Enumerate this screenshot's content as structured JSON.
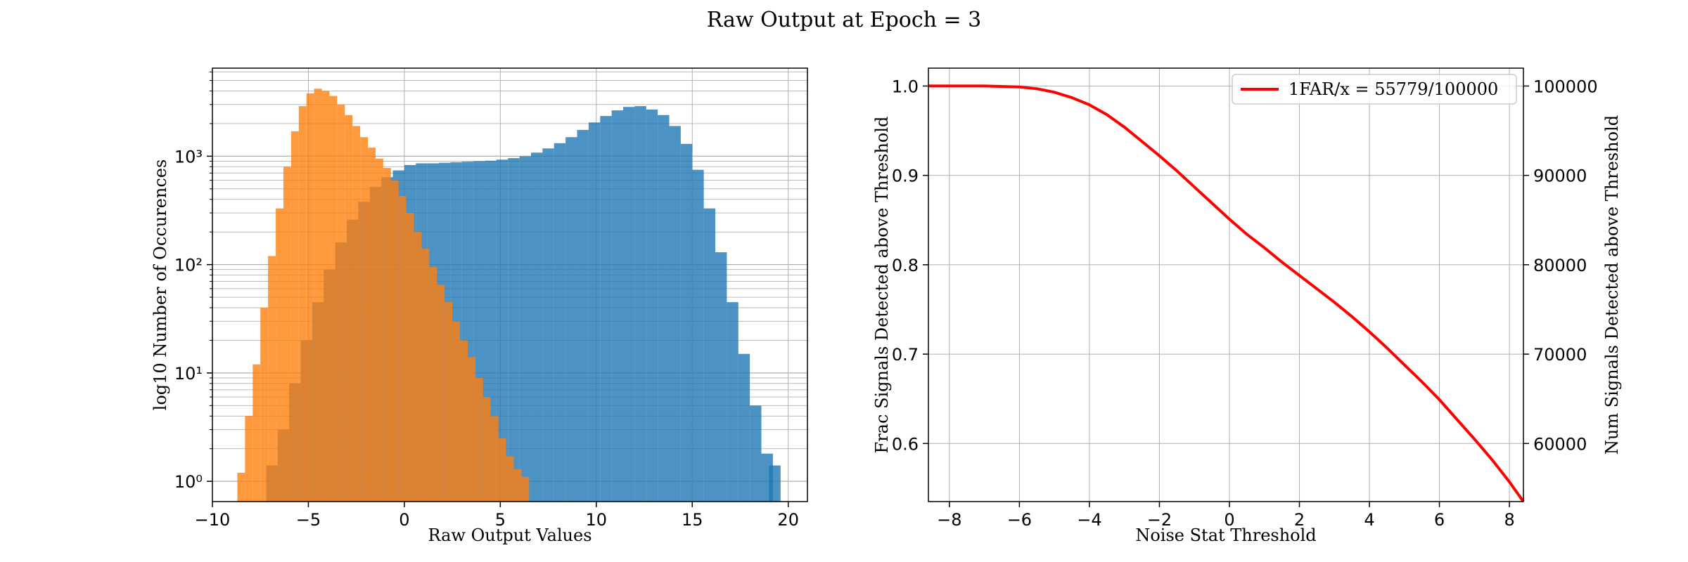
{
  "figure": {
    "title": "Raw Output at Epoch = 3"
  },
  "colors": {
    "signal": "#1f77b4",
    "noise": "#ff7f0e",
    "curve": "#ff0000",
    "grid": "#b0b0b0"
  },
  "chart_data": [
    {
      "type": "bar",
      "subtype": "histogram",
      "title": "",
      "xlabel": "Raw Output Values",
      "ylabel": "log10 Number of Occurences",
      "xlim": [
        -10,
        21
      ],
      "ylim": [
        0.65,
        6500
      ],
      "yscale": "log",
      "xticks": [
        -10,
        -5,
        0,
        5,
        10,
        15,
        20
      ],
      "xtick_labels": [
        "−10",
        "−5",
        "0",
        "5",
        "10",
        "15",
        "20"
      ],
      "yticks": [
        1,
        10,
        100,
        1000
      ],
      "ytick_labels": [
        "10⁰",
        "10¹",
        "10²",
        "10³"
      ],
      "grid": true,
      "series": [
        {
          "key": "signal",
          "alpha": 0.8,
          "bins": [
            [
              -7.2,
              1.4
            ],
            [
              -6.6,
              3
            ],
            [
              -6.0,
              8
            ],
            [
              -5.4,
              20
            ],
            [
              -4.8,
              45
            ],
            [
              -4.2,
              90
            ],
            [
              -3.6,
              160
            ],
            [
              -3.0,
              260
            ],
            [
              -2.4,
              380
            ],
            [
              -1.8,
              520
            ],
            [
              -1.2,
              640
            ],
            [
              -0.6,
              740
            ],
            [
              0.0,
              830
            ],
            [
              0.6,
              860
            ],
            [
              1.2,
              860
            ],
            [
              1.8,
              870
            ],
            [
              2.4,
              880
            ],
            [
              3.0,
              890
            ],
            [
              3.6,
              900
            ],
            [
              4.2,
              910
            ],
            [
              4.8,
              930
            ],
            [
              5.4,
              960
            ],
            [
              6.0,
              1000
            ],
            [
              6.6,
              1080
            ],
            [
              7.2,
              1180
            ],
            [
              7.8,
              1320
            ],
            [
              8.4,
              1500
            ],
            [
              9.0,
              1750
            ],
            [
              9.6,
              2050
            ],
            [
              10.2,
              2350
            ],
            [
              10.8,
              2650
            ],
            [
              11.4,
              2850
            ],
            [
              12.0,
              2900
            ],
            [
              12.6,
              2700
            ],
            [
              13.2,
              2400
            ],
            [
              13.8,
              1900
            ],
            [
              14.4,
              1300
            ],
            [
              15.0,
              750
            ],
            [
              15.6,
              330
            ],
            [
              16.2,
              130
            ],
            [
              16.8,
              45
            ],
            [
              17.4,
              15
            ],
            [
              18.0,
              5
            ],
            [
              18.6,
              1.8
            ],
            [
              19.0,
              1.4
            ]
          ],
          "bin_width": 0.6
        },
        {
          "key": "noise",
          "alpha": 0.8,
          "bins": [
            [
              -8.7,
              1.2
            ],
            [
              -8.3,
              4
            ],
            [
              -7.9,
              12
            ],
            [
              -7.5,
              40
            ],
            [
              -7.1,
              120
            ],
            [
              -6.7,
              330
            ],
            [
              -6.3,
              800
            ],
            [
              -5.9,
              1700
            ],
            [
              -5.5,
              2900
            ],
            [
              -5.1,
              3800
            ],
            [
              -4.7,
              4200
            ],
            [
              -4.3,
              4000
            ],
            [
              -3.9,
              3600
            ],
            [
              -3.5,
              3000
            ],
            [
              -3.1,
              2400
            ],
            [
              -2.7,
              1900
            ],
            [
              -2.3,
              1500
            ],
            [
              -1.9,
              1200
            ],
            [
              -1.5,
              950
            ],
            [
              -1.1,
              780
            ],
            [
              -0.7,
              600
            ],
            [
              -0.3,
              430
            ],
            [
              0.1,
              300
            ],
            [
              0.5,
              200
            ],
            [
              0.9,
              140
            ],
            [
              1.3,
              95
            ],
            [
              1.7,
              65
            ],
            [
              2.1,
              45
            ],
            [
              2.5,
              30
            ],
            [
              2.9,
              20
            ],
            [
              3.3,
              14
            ],
            [
              3.7,
              9
            ],
            [
              4.1,
              6
            ],
            [
              4.5,
              4
            ],
            [
              4.9,
              2.5
            ],
            [
              5.3,
              1.7
            ],
            [
              5.7,
              1.3
            ],
            [
              6.1,
              1.1
            ]
          ],
          "bin_width": 0.4
        }
      ]
    },
    {
      "type": "line",
      "title": "",
      "xlabel": "Noise Stat Threshold",
      "ylabel": "Frac Signals Detected above Threshold",
      "ylabel_right": "Num Signals Detected above Threshold",
      "xlim": [
        -8.6,
        8.4
      ],
      "ylim": [
        0.535,
        1.02
      ],
      "ylim_right": [
        53500,
        102000
      ],
      "xticks": [
        -8,
        -6,
        -4,
        -2,
        0,
        2,
        4,
        6,
        8
      ],
      "xtick_labels": [
        "−8",
        "−6",
        "−4",
        "−2",
        "0",
        "2",
        "4",
        "6",
        "8"
      ],
      "yticks": [
        0.6,
        0.7,
        0.8,
        0.9,
        1.0
      ],
      "ytick_labels": [
        "0.6",
        "0.7",
        "0.8",
        "0.9",
        "1.0"
      ],
      "yticks_right": [
        60000,
        70000,
        80000,
        90000,
        100000
      ],
      "ytick_labels_right": [
        "60000",
        "70000",
        "80000",
        "90000",
        "100000"
      ],
      "grid": true,
      "legend_placement": "upper-right",
      "series": [
        {
          "name": "1FAR/x = 55779/100000",
          "key": "curve",
          "x": [
            -8.6,
            -7,
            -6,
            -5.5,
            -5,
            -4.5,
            -4,
            -3.5,
            -3,
            -2.5,
            -2,
            -1.5,
            -1,
            -0.5,
            0,
            0.5,
            1,
            1.5,
            2,
            2.5,
            3,
            3.5,
            4,
            4.5,
            5,
            5.5,
            6,
            6.5,
            7,
            7.5,
            8,
            8.4
          ],
          "y": [
            1.0,
            1.0,
            0.999,
            0.997,
            0.993,
            0.987,
            0.979,
            0.968,
            0.954,
            0.938,
            0.922,
            0.905,
            0.887,
            0.869,
            0.851,
            0.834,
            0.819,
            0.803,
            0.788,
            0.773,
            0.758,
            0.742,
            0.725,
            0.707,
            0.688,
            0.669,
            0.649,
            0.627,
            0.605,
            0.582,
            0.557,
            0.535
          ]
        }
      ]
    }
  ]
}
